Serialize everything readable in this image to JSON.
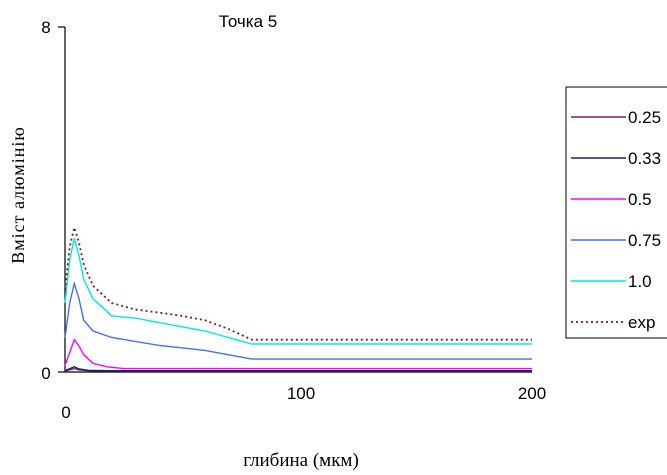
{
  "chart_data": {
    "type": "line",
    "title": "Точка 5",
    "xlabel": "глибина (мкм)",
    "ylabel": "Вміст алюмінію",
    "xlim": [
      0,
      200
    ],
    "ylim": [
      0,
      8
    ],
    "x_ticks": [
      "0",
      "100",
      "200"
    ],
    "y_ticks": [
      "0",
      "8"
    ],
    "grid": false,
    "legend_position": "right",
    "series": [
      {
        "name": "0.25",
        "color": "#7a1f7a",
        "style": "solid",
        "x": [
          0,
          2,
          4,
          6,
          10,
          20,
          200
        ],
        "y": [
          0.02,
          0.05,
          0.08,
          0.05,
          0.03,
          0.02,
          0.02
        ]
      },
      {
        "name": "0.33",
        "color": "#1f1f7a",
        "style": "solid",
        "x": [
          0,
          2,
          4,
          6,
          10,
          20,
          200
        ],
        "y": [
          0.03,
          0.08,
          0.12,
          0.07,
          0.04,
          0.03,
          0.03
        ]
      },
      {
        "name": "0.5",
        "color": "#ff00ff",
        "style": "solid",
        "x": [
          0,
          2,
          4,
          6,
          8,
          12,
          18,
          25,
          200
        ],
        "y": [
          0.15,
          0.45,
          0.75,
          0.6,
          0.4,
          0.2,
          0.12,
          0.08,
          0.08
        ]
      },
      {
        "name": "0.75",
        "color": "#3f6fff",
        "style": "solid",
        "x": [
          0,
          2,
          4,
          6,
          8,
          12,
          20,
          40,
          60,
          80,
          200
        ],
        "y": [
          0.8,
          1.6,
          2.05,
          1.7,
          1.2,
          0.95,
          0.8,
          0.62,
          0.5,
          0.3,
          0.3
        ]
      },
      {
        "name": "1.0",
        "color": "#00e8e8",
        "style": "solid",
        "x": [
          0,
          2,
          4,
          6,
          8,
          12,
          20,
          30,
          40,
          60,
          80,
          200
        ],
        "y": [
          1.6,
          2.6,
          3.1,
          2.7,
          2.15,
          1.7,
          1.3,
          1.25,
          1.15,
          0.95,
          0.65,
          0.65
        ]
      },
      {
        "name": "exp",
        "color": "#7a1f1f",
        "style": "dotted",
        "x": [
          0,
          2,
          4,
          6,
          8,
          12,
          20,
          30,
          40,
          50,
          60,
          70,
          80,
          200
        ],
        "y": [
          1.9,
          2.9,
          3.35,
          3.0,
          2.5,
          2.0,
          1.6,
          1.45,
          1.38,
          1.3,
          1.2,
          1.0,
          0.75,
          0.75
        ]
      }
    ]
  }
}
